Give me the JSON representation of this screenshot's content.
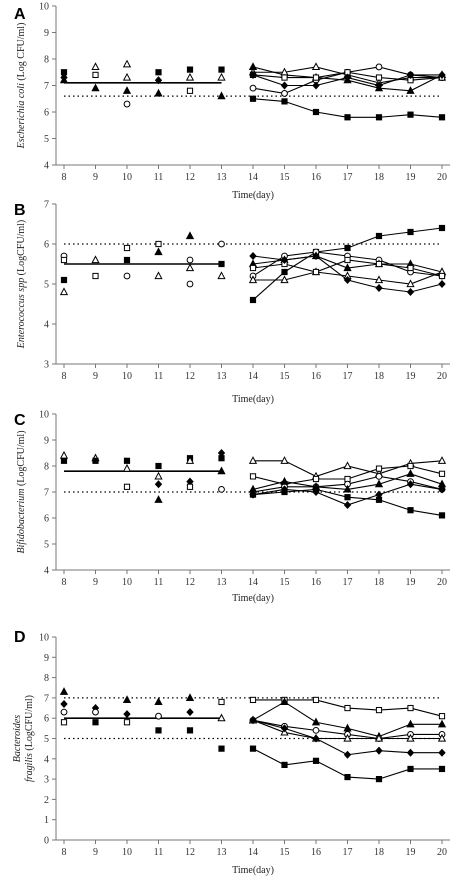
{
  "chart_data": [
    {
      "panel": "A",
      "type": "line",
      "ylabel_species": "Escherichia coli",
      "ylabel_unit": "(Log CFU/ml)",
      "xlabel": "Time(day)",
      "ylim": [
        4,
        10
      ],
      "yticks": [
        4,
        5,
        6,
        7,
        8,
        9,
        10
      ],
      "xticks": [
        8,
        9,
        10,
        11,
        12,
        13,
        14,
        15,
        16,
        17,
        18,
        19,
        20
      ],
      "grid": false,
      "reference_line": {
        "y": 6.6,
        "x": [
          8,
          20
        ],
        "style": "dotted"
      },
      "mean_line": {
        "y": 7.1,
        "x": [
          8,
          13
        ],
        "style": "solid"
      },
      "scatter_points": [
        {
          "x": 8,
          "y": 7.5,
          "marker": "square-filled"
        },
        {
          "x": 8,
          "y": 7.3,
          "marker": "diamond-filled"
        },
        {
          "x": 8,
          "y": 7.2,
          "marker": "triangle-filled"
        },
        {
          "x": 9,
          "y": 7.7,
          "marker": "triangle-open"
        },
        {
          "x": 9,
          "y": 7.4,
          "marker": "square-open"
        },
        {
          "x": 9,
          "y": 6.9,
          "marker": "triangle-filled"
        },
        {
          "x": 10,
          "y": 7.8,
          "marker": "triangle-open"
        },
        {
          "x": 10,
          "y": 7.3,
          "marker": "triangle-open"
        },
        {
          "x": 10,
          "y": 6.8,
          "marker": "triangle-filled"
        },
        {
          "x": 10,
          "y": 6.3,
          "marker": "circle-open"
        },
        {
          "x": 11,
          "y": 7.5,
          "marker": "square-filled"
        },
        {
          "x": 11,
          "y": 7.2,
          "marker": "diamond-filled"
        },
        {
          "x": 11,
          "y": 6.7,
          "marker": "triangle-filled"
        },
        {
          "x": 12,
          "y": 7.6,
          "marker": "square-filled"
        },
        {
          "x": 12,
          "y": 7.3,
          "marker": "triangle-open"
        },
        {
          "x": 12,
          "y": 6.8,
          "marker": "square-open"
        },
        {
          "x": 13,
          "y": 7.6,
          "marker": "square-filled"
        },
        {
          "x": 13,
          "y": 7.3,
          "marker": "triangle-open"
        },
        {
          "x": 13,
          "y": 6.6,
          "marker": "triangle-filled"
        }
      ],
      "x": [
        14,
        15,
        16,
        17,
        18,
        19,
        20
      ],
      "series": [
        {
          "marker": "square-filled",
          "values": [
            6.5,
            6.4,
            6.0,
            5.8,
            5.8,
            5.9,
            5.8
          ]
        },
        {
          "marker": "circle-open",
          "values": [
            6.9,
            6.7,
            7.2,
            7.5,
            7.7,
            7.4,
            7.3
          ]
        },
        {
          "marker": "triangle-filled",
          "values": [
            7.7,
            7.4,
            7.3,
            7.2,
            6.9,
            6.8,
            7.4
          ]
        },
        {
          "marker": "triangle-open",
          "values": [
            7.5,
            7.5,
            7.7,
            7.4,
            7.1,
            7.3,
            7.3
          ]
        },
        {
          "marker": "square-open",
          "values": [
            7.4,
            7.3,
            7.3,
            7.5,
            7.3,
            7.2,
            7.3
          ]
        },
        {
          "marker": "diamond-filled",
          "values": [
            7.4,
            7.0,
            7.0,
            7.3,
            7.0,
            7.4,
            7.4
          ]
        }
      ]
    },
    {
      "panel": "B",
      "type": "line",
      "ylabel_species": "Enterococcus spp",
      "ylabel_unit": "(LogCFU/ml)",
      "xlabel": "Time(day)",
      "ylim": [
        3,
        7
      ],
      "yticks": [
        3,
        4,
        5,
        6,
        7
      ],
      "xticks": [
        8,
        9,
        10,
        11,
        12,
        13,
        14,
        15,
        16,
        17,
        18,
        19,
        20
      ],
      "grid": false,
      "reference_line": {
        "y": 6.0,
        "x": [
          8,
          20
        ],
        "style": "dotted"
      },
      "mean_line": {
        "y": 5.5,
        "x": [
          8,
          13
        ],
        "style": "solid"
      },
      "scatter_points": [
        {
          "x": 8,
          "y": 5.7,
          "marker": "circle-open"
        },
        {
          "x": 8,
          "y": 5.6,
          "marker": "square-open"
        },
        {
          "x": 8,
          "y": 5.1,
          "marker": "square-filled"
        },
        {
          "x": 8,
          "y": 4.8,
          "marker": "triangle-open"
        },
        {
          "x": 9,
          "y": 5.6,
          "marker": "triangle-open"
        },
        {
          "x": 9,
          "y": 5.2,
          "marker": "square-open"
        },
        {
          "x": 10,
          "y": 5.9,
          "marker": "square-open"
        },
        {
          "x": 10,
          "y": 5.6,
          "marker": "square-filled"
        },
        {
          "x": 10,
          "y": 5.2,
          "marker": "circle-open"
        },
        {
          "x": 11,
          "y": 6.0,
          "marker": "square-open"
        },
        {
          "x": 11,
          "y": 5.8,
          "marker": "triangle-filled"
        },
        {
          "x": 11,
          "y": 5.2,
          "marker": "triangle-open"
        },
        {
          "x": 12,
          "y": 6.2,
          "marker": "triangle-filled"
        },
        {
          "x": 12,
          "y": 5.6,
          "marker": "circle-open"
        },
        {
          "x": 12,
          "y": 5.4,
          "marker": "triangle-open"
        },
        {
          "x": 12,
          "y": 5.0,
          "marker": "circle-open"
        },
        {
          "x": 13,
          "y": 6.0,
          "marker": "circle-open"
        },
        {
          "x": 13,
          "y": 5.5,
          "marker": "square-filled"
        },
        {
          "x": 13,
          "y": 5.2,
          "marker": "triangle-open"
        }
      ],
      "x": [
        14,
        15,
        16,
        17,
        18,
        19,
        20
      ],
      "series": [
        {
          "marker": "square-filled",
          "values": [
            4.6,
            5.3,
            5.8,
            5.9,
            6.2,
            6.3,
            6.4
          ]
        },
        {
          "marker": "circle-open",
          "values": [
            5.2,
            5.7,
            5.8,
            5.7,
            5.6,
            5.3,
            5.2
          ]
        },
        {
          "marker": "triangle-filled",
          "values": [
            5.5,
            5.6,
            5.7,
            5.4,
            5.5,
            5.5,
            5.3
          ]
        },
        {
          "marker": "triangle-open",
          "values": [
            5.1,
            5.1,
            5.3,
            5.2,
            5.1,
            5.0,
            5.3
          ]
        },
        {
          "marker": "square-open",
          "values": [
            5.4,
            5.5,
            5.3,
            5.6,
            5.5,
            5.4,
            5.2
          ]
        },
        {
          "marker": "diamond-filled",
          "values": [
            5.7,
            5.6,
            5.7,
            5.1,
            4.9,
            4.8,
            5.0
          ]
        }
      ]
    },
    {
      "panel": "C",
      "type": "line",
      "ylabel_species": "Bifidobacterium",
      "ylabel_unit": "(LogCFU/ml)",
      "xlabel": "Time(day)",
      "ylim": [
        4,
        10
      ],
      "yticks": [
        4,
        5,
        6,
        7,
        8,
        9,
        10
      ],
      "xticks": [
        8,
        9,
        10,
        11,
        12,
        13,
        14,
        15,
        16,
        17,
        18,
        19,
        20
      ],
      "grid": false,
      "reference_line": {
        "y": 7.0,
        "x": [
          8,
          20
        ],
        "style": "dotted"
      },
      "mean_line": {
        "y": 7.8,
        "x": [
          8,
          13
        ],
        "style": "solid"
      },
      "scatter_points": [
        {
          "x": 8,
          "y": 8.4,
          "marker": "triangle-open"
        },
        {
          "x": 8,
          "y": 8.2,
          "marker": "square-filled"
        },
        {
          "x": 9,
          "y": 8.3,
          "marker": "triangle-open"
        },
        {
          "x": 9,
          "y": 8.2,
          "marker": "square-filled"
        },
        {
          "x": 10,
          "y": 8.2,
          "marker": "square-filled"
        },
        {
          "x": 10,
          "y": 7.9,
          "marker": "triangle-open"
        },
        {
          "x": 10,
          "y": 7.2,
          "marker": "square-open"
        },
        {
          "x": 11,
          "y": 8.0,
          "marker": "square-filled"
        },
        {
          "x": 11,
          "y": 7.6,
          "marker": "triangle-open"
        },
        {
          "x": 11,
          "y": 7.3,
          "marker": "diamond-filled"
        },
        {
          "x": 11,
          "y": 6.7,
          "marker": "triangle-filled"
        },
        {
          "x": 12,
          "y": 8.3,
          "marker": "square-filled"
        },
        {
          "x": 12,
          "y": 8.2,
          "marker": "triangle-open"
        },
        {
          "x": 12,
          "y": 7.4,
          "marker": "diamond-filled"
        },
        {
          "x": 12,
          "y": 7.2,
          "marker": "square-open"
        },
        {
          "x": 13,
          "y": 8.5,
          "marker": "diamond-filled"
        },
        {
          "x": 13,
          "y": 8.3,
          "marker": "square-filled"
        },
        {
          "x": 13,
          "y": 7.8,
          "marker": "triangle-filled"
        },
        {
          "x": 13,
          "y": 7.1,
          "marker": "circle-open"
        }
      ],
      "x": [
        14,
        15,
        16,
        17,
        18,
        19,
        20
      ],
      "series": [
        {
          "marker": "square-filled",
          "values": [
            6.9,
            7.0,
            7.1,
            6.8,
            6.7,
            6.3,
            6.1
          ]
        },
        {
          "marker": "triangle-open",
          "values": [
            8.2,
            8.2,
            7.6,
            8.0,
            7.7,
            8.1,
            8.2
          ]
        },
        {
          "marker": "square-open",
          "values": [
            7.6,
            7.3,
            7.5,
            7.5,
            7.9,
            8.0,
            7.7
          ]
        },
        {
          "marker": "circle-open",
          "values": [
            7.0,
            7.2,
            7.2,
            7.3,
            7.6,
            7.4,
            7.1
          ]
        },
        {
          "marker": "triangle-filled",
          "values": [
            7.1,
            7.4,
            7.2,
            7.1,
            7.3,
            7.7,
            7.3
          ]
        },
        {
          "marker": "diamond-filled",
          "values": [
            6.9,
            7.1,
            7.0,
            6.5,
            6.9,
            7.3,
            7.1
          ]
        }
      ]
    },
    {
      "panel": "D",
      "type": "line",
      "ylabel_species": "Bacteroides fragilis",
      "ylabel_unit": "(LogCFU/ml)",
      "xlabel": "Time(day)",
      "ylim": [
        0,
        10
      ],
      "yticks": [
        0,
        1,
        2,
        3,
        4,
        5,
        6,
        7,
        8,
        9,
        10
      ],
      "xticks": [
        8,
        9,
        10,
        11,
        12,
        13,
        14,
        15,
        16,
        17,
        18,
        19,
        20
      ],
      "grid": false,
      "reference_lines": [
        {
          "y": 7.0,
          "x": [
            8,
            20
          ],
          "style": "dotted"
        },
        {
          "y": 5.0,
          "x": [
            8,
            20
          ],
          "style": "dotted"
        }
      ],
      "mean_line": {
        "y": 6.0,
        "x": [
          8,
          13
        ],
        "style": "solid"
      },
      "scatter_points": [
        {
          "x": 8,
          "y": 7.3,
          "marker": "triangle-filled"
        },
        {
          "x": 8,
          "y": 6.7,
          "marker": "diamond-filled"
        },
        {
          "x": 8,
          "y": 6.3,
          "marker": "circle-open"
        },
        {
          "x": 8,
          "y": 5.8,
          "marker": "square-open"
        },
        {
          "x": 9,
          "y": 6.5,
          "marker": "diamond-filled"
        },
        {
          "x": 9,
          "y": 6.3,
          "marker": "circle-open"
        },
        {
          "x": 9,
          "y": 5.8,
          "marker": "square-filled"
        },
        {
          "x": 10,
          "y": 6.9,
          "marker": "triangle-filled"
        },
        {
          "x": 10,
          "y": 6.2,
          "marker": "diamond-filled"
        },
        {
          "x": 10,
          "y": 5.8,
          "marker": "square-open"
        },
        {
          "x": 11,
          "y": 6.8,
          "marker": "triangle-filled"
        },
        {
          "x": 11,
          "y": 6.1,
          "marker": "circle-open"
        },
        {
          "x": 11,
          "y": 5.4,
          "marker": "square-filled"
        },
        {
          "x": 12,
          "y": 7.0,
          "marker": "triangle-filled"
        },
        {
          "x": 12,
          "y": 6.3,
          "marker": "diamond-filled"
        },
        {
          "x": 12,
          "y": 5.4,
          "marker": "square-filled"
        },
        {
          "x": 13,
          "y": 6.8,
          "marker": "square-open"
        },
        {
          "x": 13,
          "y": 6.0,
          "marker": "triangle-open"
        },
        {
          "x": 13,
          "y": 4.5,
          "marker": "square-filled"
        }
      ],
      "x": [
        14,
        15,
        16,
        17,
        18,
        19,
        20
      ],
      "series": [
        {
          "marker": "square-open",
          "values": [
            6.9,
            6.9,
            6.9,
            6.5,
            6.4,
            6.5,
            6.1
          ]
        },
        {
          "marker": "triangle-filled",
          "values": [
            5.9,
            6.8,
            5.8,
            5.5,
            5.1,
            5.7,
            5.7
          ]
        },
        {
          "marker": "circle-open",
          "values": [
            5.9,
            5.6,
            5.4,
            5.2,
            5.0,
            5.2,
            5.2
          ]
        },
        {
          "marker": "triangle-open",
          "values": [
            5.9,
            5.3,
            5.0,
            5.0,
            5.0,
            5.0,
            5.0
          ]
        },
        {
          "marker": "diamond-filled",
          "values": [
            5.9,
            5.5,
            5.0,
            4.2,
            4.4,
            4.3,
            4.3
          ]
        },
        {
          "marker": "square-filled",
          "values": [
            4.5,
            3.7,
            3.9,
            3.1,
            3.0,
            3.5,
            3.5
          ]
        }
      ]
    }
  ]
}
